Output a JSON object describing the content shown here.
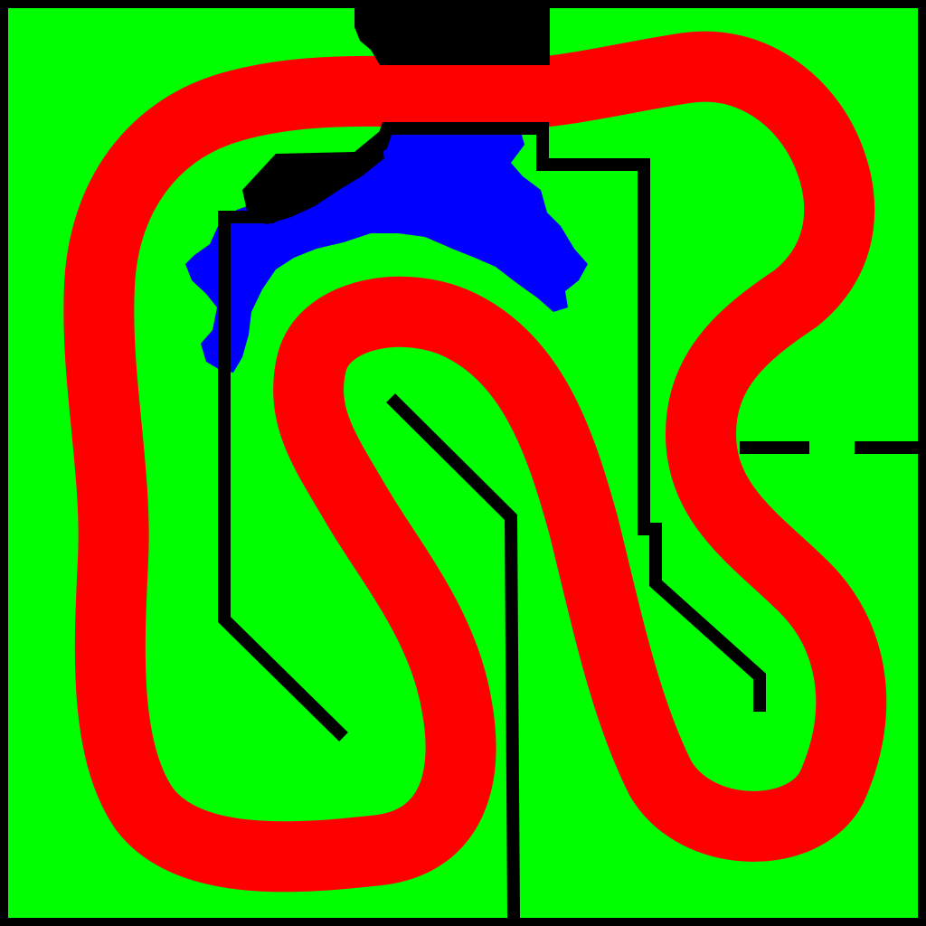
{
  "map": {
    "colors": {
      "border": "#000000",
      "grass": "#00ff00",
      "track": "#ff0000",
      "water": "#0000ff",
      "wall": "#000000"
    },
    "regions": [
      "grass-area",
      "race-track",
      "water-pond",
      "black-obstacles",
      "wall-lines"
    ]
  }
}
